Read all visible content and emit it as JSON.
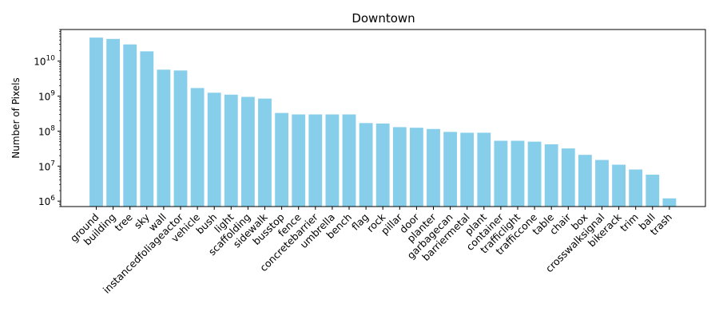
{
  "chart_data": {
    "type": "bar",
    "title": "Downtown",
    "xlabel": "",
    "ylabel": "Number of Pixels",
    "yscale": "log",
    "ylim": [
      700000,
      80000000000
    ],
    "y_tick_values": [
      1000000,
      10000000,
      100000000,
      1000000000,
      10000000000
    ],
    "y_tick_base": "10",
    "y_tick_exponents": [
      "6",
      "7",
      "8",
      "9",
      "10"
    ],
    "bar_color": "#87ceeb",
    "grid": false,
    "categories": [
      "ground",
      "building",
      "tree",
      "sky",
      "wall",
      "instancedfoliageactor",
      "vehicle",
      "bush",
      "light",
      "scaffolding",
      "sidewalk",
      "busstop",
      "fence",
      "concretebarrier",
      "umbrella",
      "bench",
      "flag",
      "rock",
      "pillar",
      "door",
      "planter",
      "garbagecan",
      "barriermetal",
      "plant",
      "container",
      "trafficlight",
      "trafficcone",
      "table",
      "chair",
      "box",
      "crosswalksignal",
      "bikerack",
      "trim",
      "ball",
      "trash"
    ],
    "values": [
      47000000000,
      43000000000,
      30000000000,
      19000000000,
      5700000000,
      5400000000,
      1700000000,
      1250000000,
      1100000000,
      950000000,
      850000000,
      330000000,
      300000000,
      300000000,
      300000000,
      300000000,
      170000000,
      165000000,
      130000000,
      125000000,
      115000000,
      95000000,
      90000000,
      90000000,
      53000000,
      53000000,
      50000000,
      42000000,
      32000000,
      21000000,
      15000000,
      11000000,
      8000000,
      5700000,
      1200000
    ]
  }
}
